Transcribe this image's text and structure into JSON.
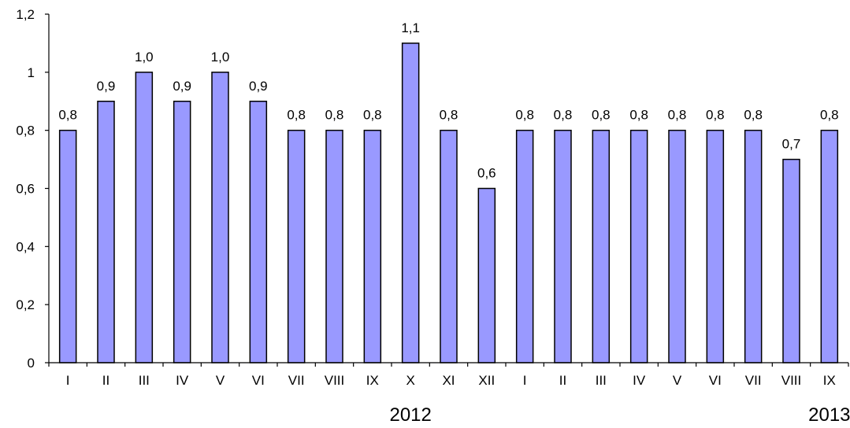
{
  "chart_data": {
    "type": "bar",
    "categories": [
      "I",
      "II",
      "III",
      "IV",
      "V",
      "VI",
      "VII",
      "VIII",
      "IX",
      "X",
      "XI",
      "XII",
      "I",
      "II",
      "III",
      "IV",
      "V",
      "VI",
      "VII",
      "VIII",
      "IX"
    ],
    "values": [
      0.8,
      0.9,
      1.0,
      0.9,
      1.0,
      0.9,
      0.8,
      0.8,
      0.8,
      1.1,
      0.8,
      0.6,
      0.8,
      0.8,
      0.8,
      0.8,
      0.8,
      0.8,
      0.8,
      0.7,
      0.8
    ],
    "data_labels": [
      "0,8",
      "0,9",
      "1,0",
      "0,9",
      "1,0",
      "0,9",
      "0,8",
      "0,8",
      "0,8",
      "1,1",
      "0,8",
      "0,6",
      "0,8",
      "0,8",
      "0,8",
      "0,8",
      "0,8",
      "0,8",
      "0,8",
      "0,7",
      "0,8"
    ],
    "ylim": [
      0,
      1.2
    ],
    "y_ticks": [
      0,
      0.2,
      0.4,
      0.6,
      0.8,
      1,
      1.2
    ],
    "y_tick_labels": [
      "0",
      "0,2",
      "0,4",
      "0,6",
      "0,8",
      "1",
      "1,2"
    ],
    "year_labels": [
      {
        "text": "2012",
        "category_index": 9
      },
      {
        "text": "2013",
        "category_index": 20
      }
    ],
    "grid": false,
    "legend": "none",
    "bar_color": "#9999FF",
    "bar_border": "#000000"
  }
}
